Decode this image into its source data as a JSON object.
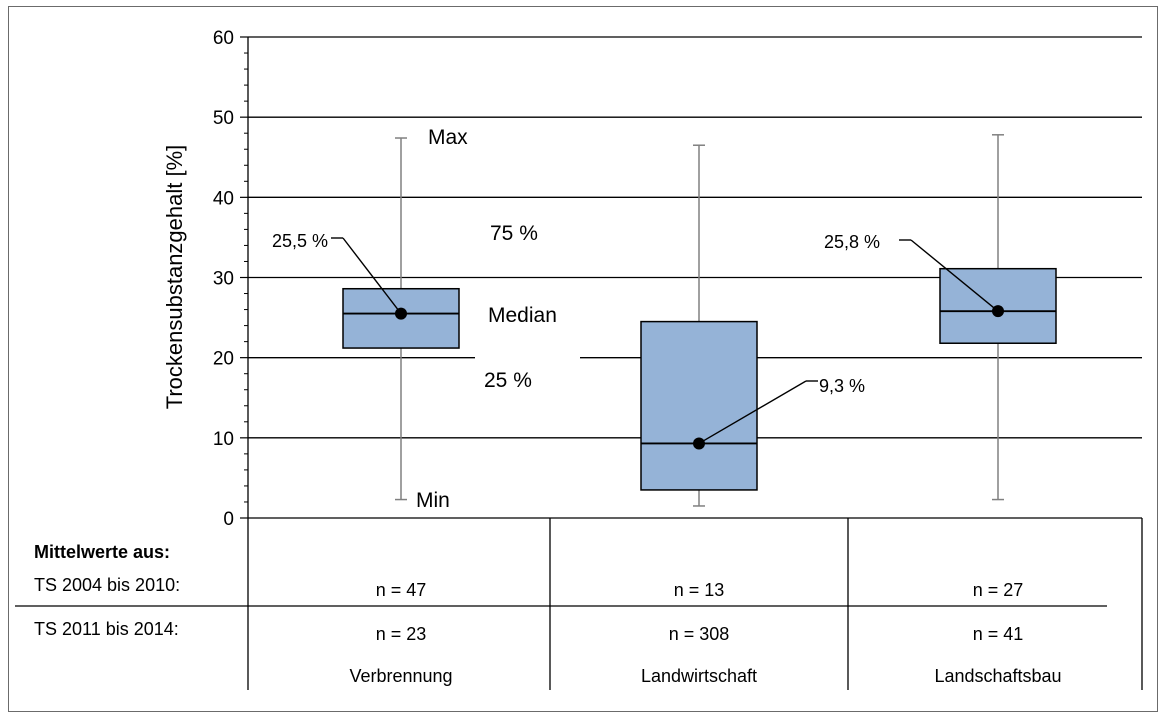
{
  "chart_data": {
    "type": "box",
    "ylabel": "Trockensubstanzgehalt [%]",
    "ylim": [
      0,
      60
    ],
    "yticks": [
      0,
      10,
      20,
      30,
      40,
      50,
      60
    ],
    "grid": true,
    "categories": [
      "Verbrennung",
      "Landwirtschaft",
      "Landschaftsbau"
    ],
    "boxes": [
      {
        "category": "Verbrennung",
        "min": 2.3,
        "q1": 21.2,
        "median": 25.5,
        "q3": 28.6,
        "max": 47.4,
        "marker": 25.5,
        "marker_label": "25,5 %"
      },
      {
        "category": "Landwirtschaft",
        "min": 1.5,
        "q1": 3.5,
        "median": 9.3,
        "q3": 24.5,
        "max": 46.5,
        "marker": 9.3,
        "marker_label": "9,3 %"
      },
      {
        "category": "Landschaftsbau",
        "min": 2.3,
        "q1": 21.8,
        "median": 25.8,
        "q3": 31.1,
        "max": 47.8,
        "marker": 25.8,
        "marker_label": "25,8 %"
      }
    ],
    "legend_annotations": {
      "max": "Max",
      "q3": "75 %",
      "median": "Median",
      "q1": "25 %",
      "min": "Min"
    },
    "table": {
      "header": "Mittelwerte aus:",
      "rows": [
        {
          "label": "TS 2004 bis 2010:",
          "values": [
            "n = 47",
            "n = 13",
            "n = 27"
          ]
        },
        {
          "label": "TS 2011 bis 2014:",
          "values": [
            "n = 23",
            "n = 308",
            "n = 41"
          ]
        }
      ]
    },
    "colors": {
      "box_fill": "#95b3d7",
      "box_stroke": "#000000",
      "whisker": "#808080",
      "grid": "#000000"
    }
  }
}
